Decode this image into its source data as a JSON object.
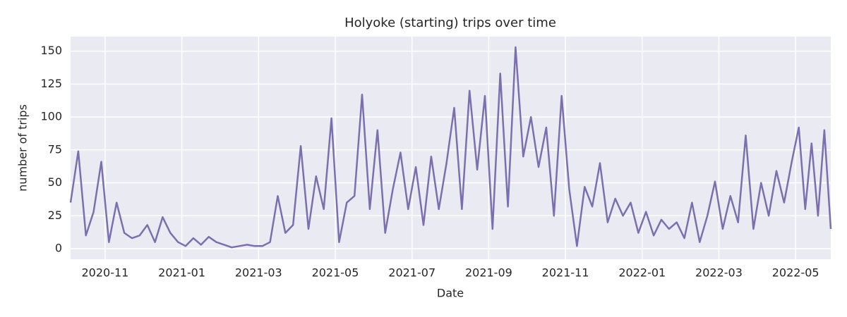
{
  "chart_data": {
    "type": "line",
    "title": "Holyoke (starting) trips over time",
    "x_label": "Date",
    "y_label": "number of trips",
    "color": "#7b6fb0",
    "x": [
      "2020-10",
      "2020-10",
      "2020-10",
      "2020-10",
      "2020-10",
      "2020-11",
      "2020-11",
      "2020-11",
      "2020-11",
      "2020-11",
      "2020-12",
      "2020-12",
      "2020-12",
      "2020-12",
      "2020-12",
      "2021-01",
      "2021-01",
      "2021-01",
      "2021-01",
      "2021-01",
      "2021-02",
      "2021-02",
      "2021-02",
      "2021-02",
      "2021-02",
      "2021-03",
      "2021-03",
      "2021-03",
      "2021-03",
      "2021-03",
      "2021-04",
      "2021-04",
      "2021-04",
      "2021-04",
      "2021-04",
      "2021-05",
      "2021-05",
      "2021-05",
      "2021-05",
      "2021-05",
      "2021-06",
      "2021-06",
      "2021-06",
      "2021-06",
      "2021-06",
      "2021-07",
      "2021-07",
      "2021-07",
      "2021-07",
      "2021-07",
      "2021-08",
      "2021-08",
      "2021-08",
      "2021-08",
      "2021-08",
      "2021-09",
      "2021-09",
      "2021-09",
      "2021-09",
      "2021-09",
      "2021-10",
      "2021-10",
      "2021-10",
      "2021-10",
      "2021-10",
      "2021-11",
      "2021-11",
      "2021-11",
      "2021-11",
      "2021-11",
      "2021-12",
      "2021-12",
      "2021-12",
      "2021-12",
      "2021-12",
      "2022-01",
      "2022-01",
      "2022-01",
      "2022-01",
      "2022-01",
      "2022-02",
      "2022-02",
      "2022-02",
      "2022-02",
      "2022-02",
      "2022-03",
      "2022-03",
      "2022-03",
      "2022-03",
      "2022-03",
      "2022-04",
      "2022-04",
      "2022-04",
      "2022-04",
      "2022-04",
      "2022-05",
      "2022-05",
      "2022-05",
      "2022-05",
      "2022-05",
      "2022-05"
    ],
    "values": [
      35,
      74,
      10,
      28,
      66,
      5,
      35,
      12,
      8,
      10,
      18,
      5,
      24,
      12,
      5,
      2,
      8,
      3,
      9,
      5,
      3,
      1,
      2,
      3,
      2,
      2,
      5,
      40,
      12,
      18,
      78,
      15,
      55,
      30,
      99,
      5,
      35,
      40,
      117,
      30,
      90,
      12,
      45,
      73,
      30,
      62,
      18,
      70,
      30,
      65,
      107,
      30,
      120,
      60,
      116,
      15,
      133,
      32,
      153,
      70,
      100,
      62,
      92,
      25,
      116,
      45,
      2,
      47,
      32,
      65,
      20,
      38,
      25,
      35,
      12,
      28,
      10,
      22,
      15,
      20,
      8,
      35,
      5,
      25,
      51,
      15,
      40,
      20,
      86,
      15,
      50,
      25,
      59,
      35,
      66,
      92,
      30,
      80,
      25,
      90,
      15
    ],
    "ylim": [
      -8,
      161
    ],
    "yticks": [
      0,
      25,
      50,
      75,
      100,
      125,
      150
    ],
    "xticks": [
      "2020-11",
      "2021-01",
      "2021-03",
      "2021-05",
      "2021-07",
      "2021-09",
      "2021-11",
      "2022-01",
      "2022-03",
      "2022-05"
    ],
    "grid": true
  }
}
